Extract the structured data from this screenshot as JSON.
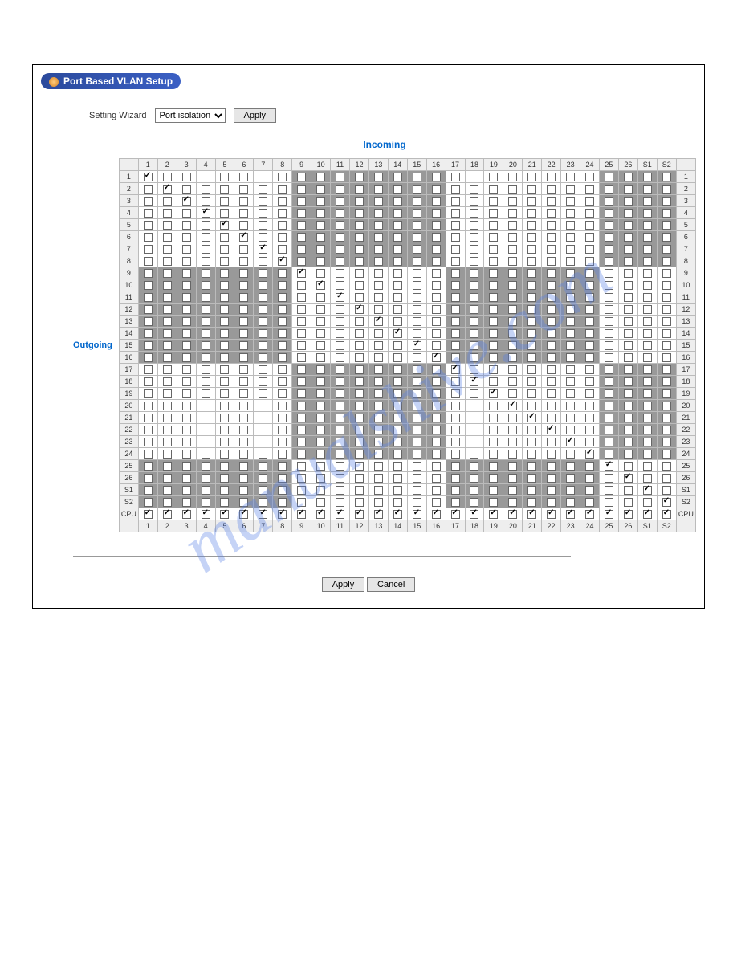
{
  "title": "Port Based VLAN Setup",
  "wizard": {
    "label": "Setting Wizard",
    "selected": "Port isolation",
    "apply": "Apply"
  },
  "axis": {
    "incoming": "Incoming",
    "outgoing": "Outgoing"
  },
  "buttons": {
    "apply": "Apply",
    "cancel": "Cancel"
  },
  "watermark": "manualshive.com",
  "cols": [
    "1",
    "2",
    "3",
    "4",
    "5",
    "6",
    "7",
    "8",
    "9",
    "10",
    "11",
    "12",
    "13",
    "14",
    "15",
    "16",
    "17",
    "18",
    "19",
    "20",
    "21",
    "22",
    "23",
    "24",
    "25",
    "26",
    "S1",
    "S2"
  ],
  "rows": [
    "1",
    "2",
    "3",
    "4",
    "5",
    "6",
    "7",
    "8",
    "9",
    "10",
    "11",
    "12",
    "13",
    "14",
    "15",
    "16",
    "17",
    "18",
    "19",
    "20",
    "21",
    "22",
    "23",
    "24",
    "25",
    "26",
    "S1",
    "S2",
    "CPU"
  ],
  "shaded_col_groups": [
    [
      0,
      7
    ],
    [
      8,
      15
    ],
    [
      16,
      23
    ],
    [
      24,
      27
    ]
  ],
  "shaded_row_groups": [
    [
      0,
      7,
      false
    ],
    [
      8,
      15,
      true
    ],
    [
      16,
      23,
      false
    ],
    [
      24,
      27,
      true
    ]
  ],
  "diagonal_checked": true,
  "cpu_row_checked": true,
  "colors": {
    "shaded": "#999999",
    "plain": "#ffffff",
    "header_bg": "#eeeeee",
    "border": "#bbbbbb"
  }
}
